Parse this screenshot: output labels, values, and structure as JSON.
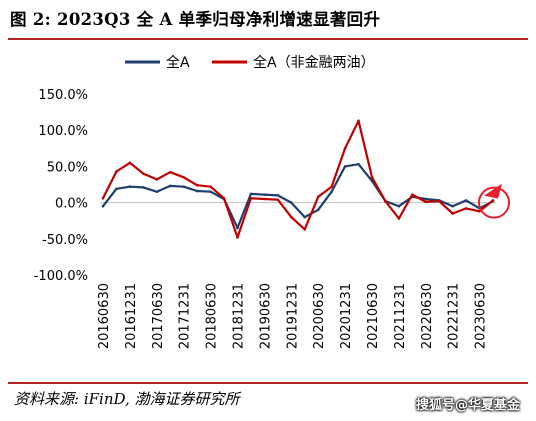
{
  "title": "图 2: 2023Q3 全 A 单季归母净利增速显著回升",
  "source": "资料来源: iFinD, 渤海证券研究所",
  "watermark": "搜狐号@华夏基金",
  "chart_data": {
    "type": "line",
    "categories": [
      "20160630",
      "20160930",
      "20161231",
      "20170331",
      "20170630",
      "20170930",
      "20171231",
      "20180331",
      "20180630",
      "20180930",
      "20181231",
      "20190331",
      "20190630",
      "20190930",
      "20191231",
      "20200331",
      "20200630",
      "20200930",
      "20201231",
      "20210331",
      "20210630",
      "20210930",
      "20211231",
      "20220331",
      "20220630",
      "20220930",
      "20221231",
      "20230331",
      "20230630",
      "20230930"
    ],
    "tick_labels": [
      "20160630",
      "20161231",
      "20170630",
      "20171231",
      "20180630",
      "20181231",
      "20190630",
      "20191231",
      "20200630",
      "20201231",
      "20210630",
      "20211231",
      "20220630",
      "20221231",
      "20230630"
    ],
    "series": [
      {
        "name": "全A",
        "color": "#1f3f6e",
        "values": [
          -5,
          19,
          22,
          21,
          15,
          23,
          22,
          16,
          15,
          5,
          -35,
          12,
          11,
          10,
          0,
          -20,
          -10,
          15,
          50,
          53,
          30,
          2,
          -5,
          8,
          5,
          3,
          -5,
          3,
          -8,
          2
        ]
      },
      {
        "name": "全A（非金融两油）",
        "color": "#c00000",
        "values": [
          6,
          43,
          55,
          40,
          32,
          42,
          35,
          24,
          22,
          6,
          -48,
          6,
          5,
          4,
          -20,
          -37,
          8,
          22,
          75,
          113,
          35,
          2,
          -22,
          11,
          1,
          2,
          -15,
          -8,
          -12,
          3
        ]
      }
    ],
    "ylim": [
      -100,
      150
    ],
    "yticks": [
      "150.0%",
      "100.0%",
      "50.0%",
      "0.0%",
      "-50.0%",
      "-100.0%"
    ],
    "ytick_values": [
      150,
      100,
      50,
      0,
      -50,
      -100
    ],
    "legend_position": "top",
    "annotations": [
      "circle",
      "up-arrow"
    ],
    "annotation_color": "#e8202a"
  }
}
